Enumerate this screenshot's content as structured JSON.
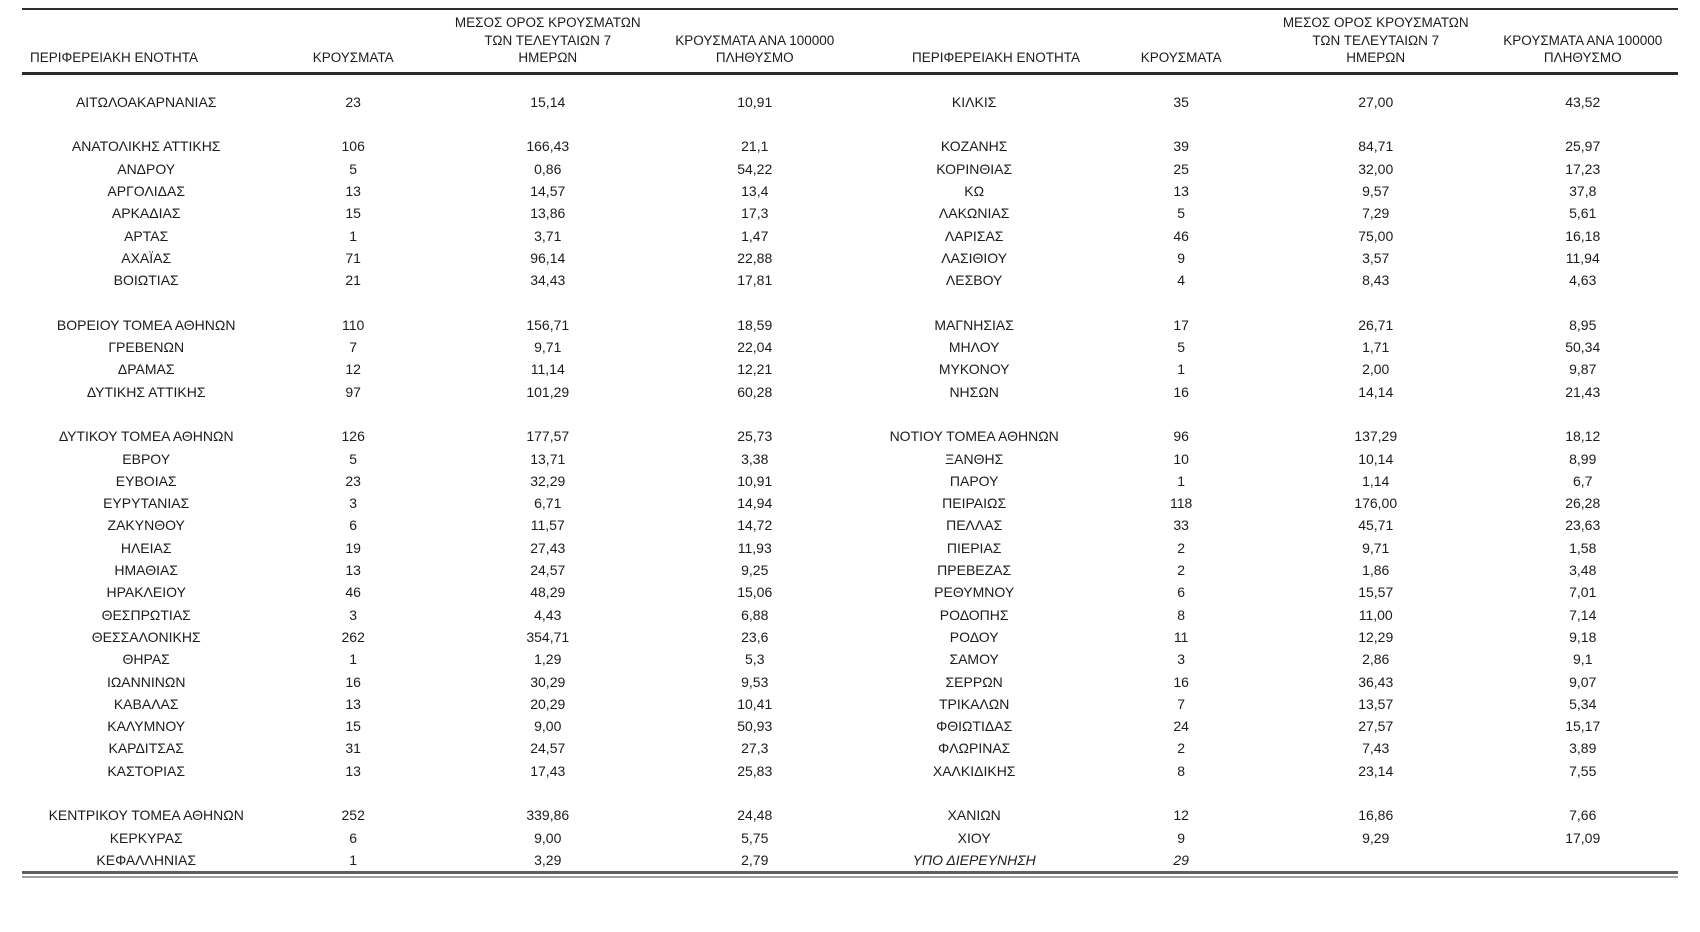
{
  "colors": {
    "background": "#ffffff",
    "text": "#1c1c1c",
    "header_rule": "#2a2a2a",
    "top_rule": "#2e2e2e",
    "bottom_rule_dark": "#5f5f5f",
    "bottom_rule_light": "#9e9e9e"
  },
  "headers": {
    "region": "ΠΕΡΙΦΕΡΕΙΑΚΗ ΕΝΟΤΗΤΑ",
    "cases": "ΚΡΟΥΣΜΑΤΑ",
    "avg7": [
      "ΜΕΣΟΣ ΟΡΟΣ ΚΡΟΥΣΜΑΤΩΝ",
      "ΤΩΝ ΤΕΛΕΥΤΑΙΩΝ 7",
      "ΗΜΕΡΩΝ"
    ],
    "per100k": [
      "ΚΡΟΥΣΜΑΤΑ ΑΝΑ 100000",
      "ΠΛΗΘΥΣΜΟ"
    ]
  },
  "left_table": {
    "rows": [
      {
        "region": "ΑΙΤΩΛΟΑΚΑΡΝΑΝΙΑΣ",
        "cases": "23",
        "avg7": "15,14",
        "per100k": "10,91"
      },
      {
        "blank": true
      },
      {
        "region": "ΑΝΑΤΟΛΙΚΗΣ ΑΤΤΙΚΗΣ",
        "cases": "106",
        "avg7": "166,43",
        "per100k": "21,1"
      },
      {
        "region": "ΑΝΔΡΟΥ",
        "cases": "5",
        "avg7": "0,86",
        "per100k": "54,22"
      },
      {
        "region": "ΑΡΓΟΛΙΔΑΣ",
        "cases": "13",
        "avg7": "14,57",
        "per100k": "13,4"
      },
      {
        "region": "ΑΡΚΑΔΙΑΣ",
        "cases": "15",
        "avg7": "13,86",
        "per100k": "17,3"
      },
      {
        "region": "ΑΡΤΑΣ",
        "cases": "1",
        "avg7": "3,71",
        "per100k": "1,47"
      },
      {
        "region": "ΑΧΑΪΑΣ",
        "cases": "71",
        "avg7": "96,14",
        "per100k": "22,88"
      },
      {
        "region": "ΒΟΙΩΤΙΑΣ",
        "cases": "21",
        "avg7": "34,43",
        "per100k": "17,81"
      },
      {
        "blank": true
      },
      {
        "region": "ΒΟΡΕΙΟΥ ΤΟΜΕΑ ΑΘΗΝΩΝ",
        "cases": "110",
        "avg7": "156,71",
        "per100k": "18,59"
      },
      {
        "region": "ΓΡΕΒΕΝΩΝ",
        "cases": "7",
        "avg7": "9,71",
        "per100k": "22,04"
      },
      {
        "region": "ΔΡΑΜΑΣ",
        "cases": "12",
        "avg7": "11,14",
        "per100k": "12,21"
      },
      {
        "region": "ΔΥΤΙΚΗΣ ΑΤΤΙΚΗΣ",
        "cases": "97",
        "avg7": "101,29",
        "per100k": "60,28"
      },
      {
        "blank": true
      },
      {
        "region": "ΔΥΤΙΚΟΥ ΤΟΜΕΑ ΑΘΗΝΩΝ",
        "cases": "126",
        "avg7": "177,57",
        "per100k": "25,73"
      },
      {
        "region": "ΕΒΡΟΥ",
        "cases": "5",
        "avg7": "13,71",
        "per100k": "3,38"
      },
      {
        "region": "ΕΥΒΟΙΑΣ",
        "cases": "23",
        "avg7": "32,29",
        "per100k": "10,91"
      },
      {
        "region": "ΕΥΡΥΤΑΝΙΑΣ",
        "cases": "3",
        "avg7": "6,71",
        "per100k": "14,94"
      },
      {
        "region": "ΖΑΚΥΝΘΟΥ",
        "cases": "6",
        "avg7": "11,57",
        "per100k": "14,72"
      },
      {
        "region": "ΗΛΕΙΑΣ",
        "cases": "19",
        "avg7": "27,43",
        "per100k": "11,93"
      },
      {
        "region": "ΗΜΑΘΙΑΣ",
        "cases": "13",
        "avg7": "24,57",
        "per100k": "9,25"
      },
      {
        "region": "ΗΡΑΚΛΕΙΟΥ",
        "cases": "46",
        "avg7": "48,29",
        "per100k": "15,06"
      },
      {
        "region": "ΘΕΣΠΡΩΤΙΑΣ",
        "cases": "3",
        "avg7": "4,43",
        "per100k": "6,88"
      },
      {
        "region": "ΘΕΣΣΑΛΟΝΙΚΗΣ",
        "cases": "262",
        "avg7": "354,71",
        "per100k": "23,6"
      },
      {
        "region": "ΘΗΡΑΣ",
        "cases": "1",
        "avg7": "1,29",
        "per100k": "5,3"
      },
      {
        "region": "ΙΩΑΝΝΙΝΩΝ",
        "cases": "16",
        "avg7": "30,29",
        "per100k": "9,53"
      },
      {
        "region": "ΚΑΒΑΛΑΣ",
        "cases": "13",
        "avg7": "20,29",
        "per100k": "10,41"
      },
      {
        "region": "ΚΑΛΥΜΝΟΥ",
        "cases": "15",
        "avg7": "9,00",
        "per100k": "50,93"
      },
      {
        "region": "ΚΑΡΔΙΤΣΑΣ",
        "cases": "31",
        "avg7": "24,57",
        "per100k": "27,3"
      },
      {
        "region": "ΚΑΣΤΟΡΙΑΣ",
        "cases": "13",
        "avg7": "17,43",
        "per100k": "25,83"
      },
      {
        "blank": true
      },
      {
        "region": "ΚΕΝΤΡΙΚΟΥ ΤΟΜΕΑ ΑΘΗΝΩΝ",
        "cases": "252",
        "avg7": "339,86",
        "per100k": "24,48"
      },
      {
        "region": "ΚΕΡΚΥΡΑΣ",
        "cases": "6",
        "avg7": "9,00",
        "per100k": "5,75"
      },
      {
        "region": "ΚΕΦΑΛΛΗΝΙΑΣ",
        "cases": "1",
        "avg7": "3,29",
        "per100k": "2,79"
      }
    ]
  },
  "right_table": {
    "rows": [
      {
        "region": "ΚΙΛΚΙΣ",
        "cases": "35",
        "avg7": "27,00",
        "per100k": "43,52"
      },
      {
        "blank": true
      },
      {
        "region": "ΚΟΖΑΝΗΣ",
        "cases": "39",
        "avg7": "84,71",
        "per100k": "25,97"
      },
      {
        "region": "ΚΟΡΙΝΘΙΑΣ",
        "cases": "25",
        "avg7": "32,00",
        "per100k": "17,23"
      },
      {
        "region": "ΚΩ",
        "cases": "13",
        "avg7": "9,57",
        "per100k": "37,8"
      },
      {
        "region": "ΛΑΚΩΝΙΑΣ",
        "cases": "5",
        "avg7": "7,29",
        "per100k": "5,61"
      },
      {
        "region": "ΛΑΡΙΣΑΣ",
        "cases": "46",
        "avg7": "75,00",
        "per100k": "16,18"
      },
      {
        "region": "ΛΑΣΙΘΙΟΥ",
        "cases": "9",
        "avg7": "3,57",
        "per100k": "11,94"
      },
      {
        "region": "ΛΕΣΒΟΥ",
        "cases": "4",
        "avg7": "8,43",
        "per100k": "4,63"
      },
      {
        "blank": true
      },
      {
        "region": "ΜΑΓΝΗΣΙΑΣ",
        "cases": "17",
        "avg7": "26,71",
        "per100k": "8,95"
      },
      {
        "region": "ΜΗΛΟΥ",
        "cases": "5",
        "avg7": "1,71",
        "per100k": "50,34"
      },
      {
        "region": "ΜΥΚΟΝΟΥ",
        "cases": "1",
        "avg7": "2,00",
        "per100k": "9,87"
      },
      {
        "region": "ΝΗΣΩΝ",
        "cases": "16",
        "avg7": "14,14",
        "per100k": "21,43"
      },
      {
        "blank": true
      },
      {
        "region": "ΝΟΤΙΟΥ ΤΟΜΕΑ ΑΘΗΝΩΝ",
        "cases": "96",
        "avg7": "137,29",
        "per100k": "18,12"
      },
      {
        "region": "ΞΑΝΘΗΣ",
        "cases": "10",
        "avg7": "10,14",
        "per100k": "8,99"
      },
      {
        "region": "ΠΑΡΟΥ",
        "cases": "1",
        "avg7": "1,14",
        "per100k": "6,7"
      },
      {
        "region": "ΠΕΙΡΑΙΩΣ",
        "cases": "118",
        "avg7": "176,00",
        "per100k": "26,28"
      },
      {
        "region": "ΠΕΛΛΑΣ",
        "cases": "33",
        "avg7": "45,71",
        "per100k": "23,63"
      },
      {
        "region": "ΠΙΕΡΙΑΣ",
        "cases": "2",
        "avg7": "9,71",
        "per100k": "1,58"
      },
      {
        "region": "ΠΡΕΒΕΖΑΣ",
        "cases": "2",
        "avg7": "1,86",
        "per100k": "3,48"
      },
      {
        "region": "ΡΕΘΥΜΝΟΥ",
        "cases": "6",
        "avg7": "15,57",
        "per100k": "7,01"
      },
      {
        "region": "ΡΟΔΟΠΗΣ",
        "cases": "8",
        "avg7": "11,00",
        "per100k": "7,14"
      },
      {
        "region": "ΡΟΔΟΥ",
        "cases": "11",
        "avg7": "12,29",
        "per100k": "9,18"
      },
      {
        "region": "ΣΑΜΟΥ",
        "cases": "3",
        "avg7": "2,86",
        "per100k": "9,1"
      },
      {
        "region": "ΣΕΡΡΩΝ",
        "cases": "16",
        "avg7": "36,43",
        "per100k": "9,07"
      },
      {
        "region": "ΤΡΙΚΑΛΩΝ",
        "cases": "7",
        "avg7": "13,57",
        "per100k": "5,34"
      },
      {
        "region": "ΦΘΙΩΤΙΔΑΣ",
        "cases": "24",
        "avg7": "27,57",
        "per100k": "15,17"
      },
      {
        "region": "ΦΛΩΡΙΝΑΣ",
        "cases": "2",
        "avg7": "7,43",
        "per100k": "3,89"
      },
      {
        "region": "ΧΑΛΚΙΔΙΚΗΣ",
        "cases": "8",
        "avg7": "23,14",
        "per100k": "7,55"
      },
      {
        "blank": true
      },
      {
        "region": "ΧΑΝΙΩΝ",
        "cases": "12",
        "avg7": "16,86",
        "per100k": "7,66"
      },
      {
        "region": "ΧΙΟΥ",
        "cases": "9",
        "avg7": "9,29",
        "per100k": "17,09"
      },
      {
        "region": "ΥΠΟ ΔΙΕΡΕΥΝΗΣΗ",
        "cases": "29",
        "avg7": "",
        "per100k": "",
        "italic": true
      }
    ]
  }
}
